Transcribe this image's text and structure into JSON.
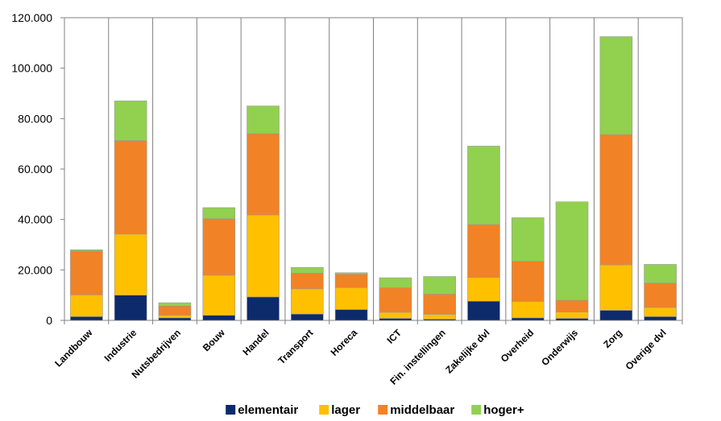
{
  "chart_data": {
    "type": "bar",
    "stacked": true,
    "title": "",
    "xlabel": "",
    "ylabel": "",
    "ylim": [
      0,
      120000
    ],
    "y_ticks": [
      "0",
      "20.000",
      "40.000",
      "60.000",
      "80.000",
      "100.000",
      "120.000"
    ],
    "y_tick_values": [
      0,
      20000,
      40000,
      60000,
      80000,
      100000,
      120000
    ],
    "grid": "vertical-category-separators",
    "legend_position": "bottom",
    "categories": [
      "Landbouw",
      "Industrie",
      "Nutsbedrijven",
      "Bouw",
      "Handel",
      "Transport",
      "Horeca",
      "ICT",
      "Fin. instellingen",
      "Zakelijke dvl",
      "Overheid",
      "Onderwijs",
      "Zorg",
      "Overige dvl"
    ],
    "series": [
      {
        "name": "elementair",
        "color": "#0d2a6b",
        "values": [
          1500,
          10000,
          1000,
          2000,
          9300,
          2500,
          4300,
          800,
          500,
          7600,
          1000,
          800,
          4000,
          1500
        ]
      },
      {
        "name": "lager",
        "color": "#ffc000",
        "values": [
          8600,
          24200,
          1000,
          15900,
          32500,
          10000,
          8700,
          2400,
          1900,
          9400,
          6500,
          2500,
          18000,
          3600
        ]
      },
      {
        "name": "middelbaar",
        "color": "#f28226",
        "values": [
          17400,
          37100,
          3700,
          22400,
          32200,
          6200,
          5300,
          9700,
          8000,
          21000,
          15900,
          4700,
          51700,
          9700
        ]
      },
      {
        "name": "hoger+",
        "color": "#92d050",
        "values": [
          500,
          15700,
          1300,
          4400,
          11000,
          2300,
          600,
          4000,
          7000,
          31100,
          17300,
          39000,
          38800,
          7400
        ]
      }
    ]
  }
}
